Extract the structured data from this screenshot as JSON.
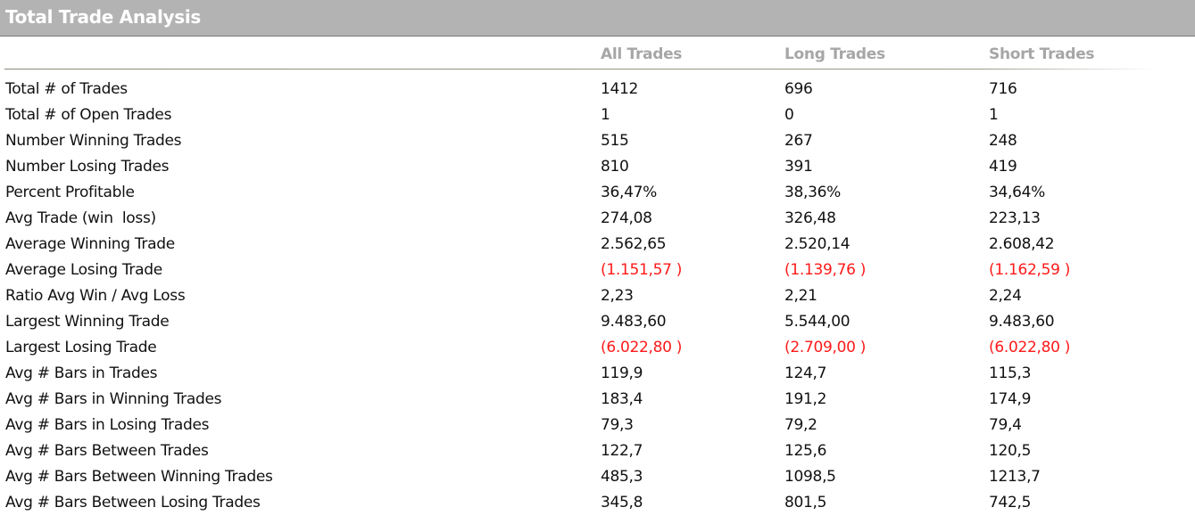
{
  "title": "Total Trade Analysis",
  "columns": [
    "All Trades",
    "Long Trades",
    "Short Trades"
  ],
  "colors": {
    "header_bg": "#b3b3b3",
    "negative": "#ff1a1a",
    "column_header": "#a6a6a6"
  },
  "rows": [
    {
      "label": "Total # of Trades",
      "values": [
        "1412",
        "696",
        "716"
      ],
      "negative": false
    },
    {
      "label": "Total # of Open Trades",
      "values": [
        "1",
        "0",
        "1"
      ],
      "negative": false
    },
    {
      "label": "Number Winning Trades",
      "values": [
        "515",
        "267",
        "248"
      ],
      "negative": false
    },
    {
      "label": "Number Losing Trades",
      "values": [
        "810",
        "391",
        "419"
      ],
      "negative": false
    },
    {
      "label": "Percent Profitable",
      "values": [
        "36,47%",
        "38,36%",
        "34,64%"
      ],
      "negative": false
    },
    {
      "label": "Avg Trade (win  loss)",
      "values": [
        "274,08",
        "326,48",
        "223,13"
      ],
      "negative": false
    },
    {
      "label": "Average Winning Trade",
      "values": [
        "2.562,65",
        "2.520,14",
        "2.608,42"
      ],
      "negative": false
    },
    {
      "label": "Average Losing Trade",
      "values": [
        "(1.151,57 )",
        "(1.139,76 )",
        "(1.162,59 )"
      ],
      "negative": true
    },
    {
      "label": "Ratio Avg Win / Avg Loss",
      "values": [
        "2,23",
        "2,21",
        "2,24"
      ],
      "negative": false
    },
    {
      "label": "Largest Winning Trade",
      "values": [
        "9.483,60",
        "5.544,00",
        "9.483,60"
      ],
      "negative": false
    },
    {
      "label": "Largest Losing Trade",
      "values": [
        "(6.022,80 )",
        "(2.709,00 )",
        "(6.022,80 )"
      ],
      "negative": true
    },
    {
      "label": "Avg # Bars in Trades",
      "values": [
        "119,9",
        "124,7",
        "115,3"
      ],
      "negative": false
    },
    {
      "label": "Avg # Bars in Winning Trades",
      "values": [
        "183,4",
        "191,2",
        "174,9"
      ],
      "negative": false
    },
    {
      "label": "Avg # Bars in Losing Trades",
      "values": [
        "79,3",
        "79,2",
        "79,4"
      ],
      "negative": false
    },
    {
      "label": "Avg # Bars Between Trades",
      "values": [
        "122,7",
        "125,6",
        "120,5"
      ],
      "negative": false
    },
    {
      "label": "Avg # Bars Between Winning Trades",
      "values": [
        "485,3",
        "1098,5",
        "1213,7"
      ],
      "negative": false
    },
    {
      "label": "Avg # Bars Between Losing Trades",
      "values": [
        "345,8",
        "801,5",
        "742,5"
      ],
      "negative": false
    }
  ]
}
